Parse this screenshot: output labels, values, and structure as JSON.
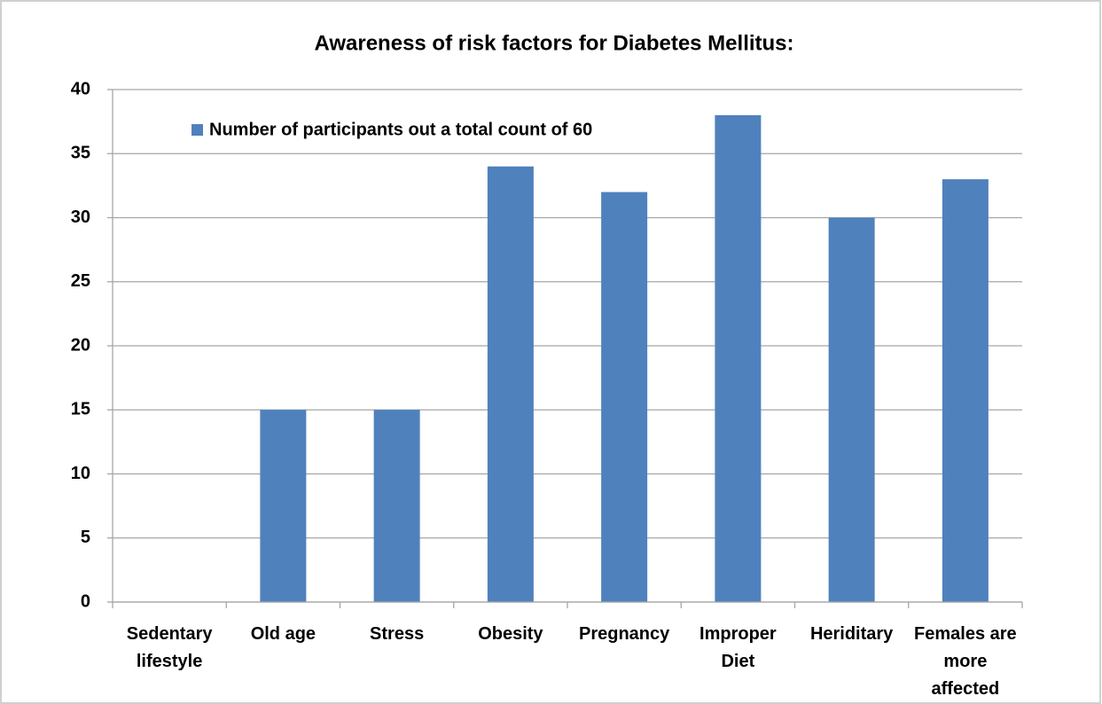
{
  "chart_data": {
    "type": "bar",
    "title": "Awareness of risk factors for Diabetes Mellitus:",
    "categories": [
      "Sedentary lifestyle",
      "Old age",
      "Stress",
      "Obesity",
      "Pregnancy",
      "Improper Diet",
      "Heriditary",
      "Females are more affected"
    ],
    "series": [
      {
        "name": "Number of participants out a total count of 60",
        "color": "#4f81bd",
        "values": [
          0,
          15,
          15,
          34,
          32,
          38,
          30,
          33
        ]
      }
    ],
    "ylim": [
      0,
      40
    ],
    "yticks": [
      0,
      5,
      10,
      15,
      20,
      25,
      30,
      35,
      40
    ],
    "grid": true,
    "legend": "top-left"
  }
}
